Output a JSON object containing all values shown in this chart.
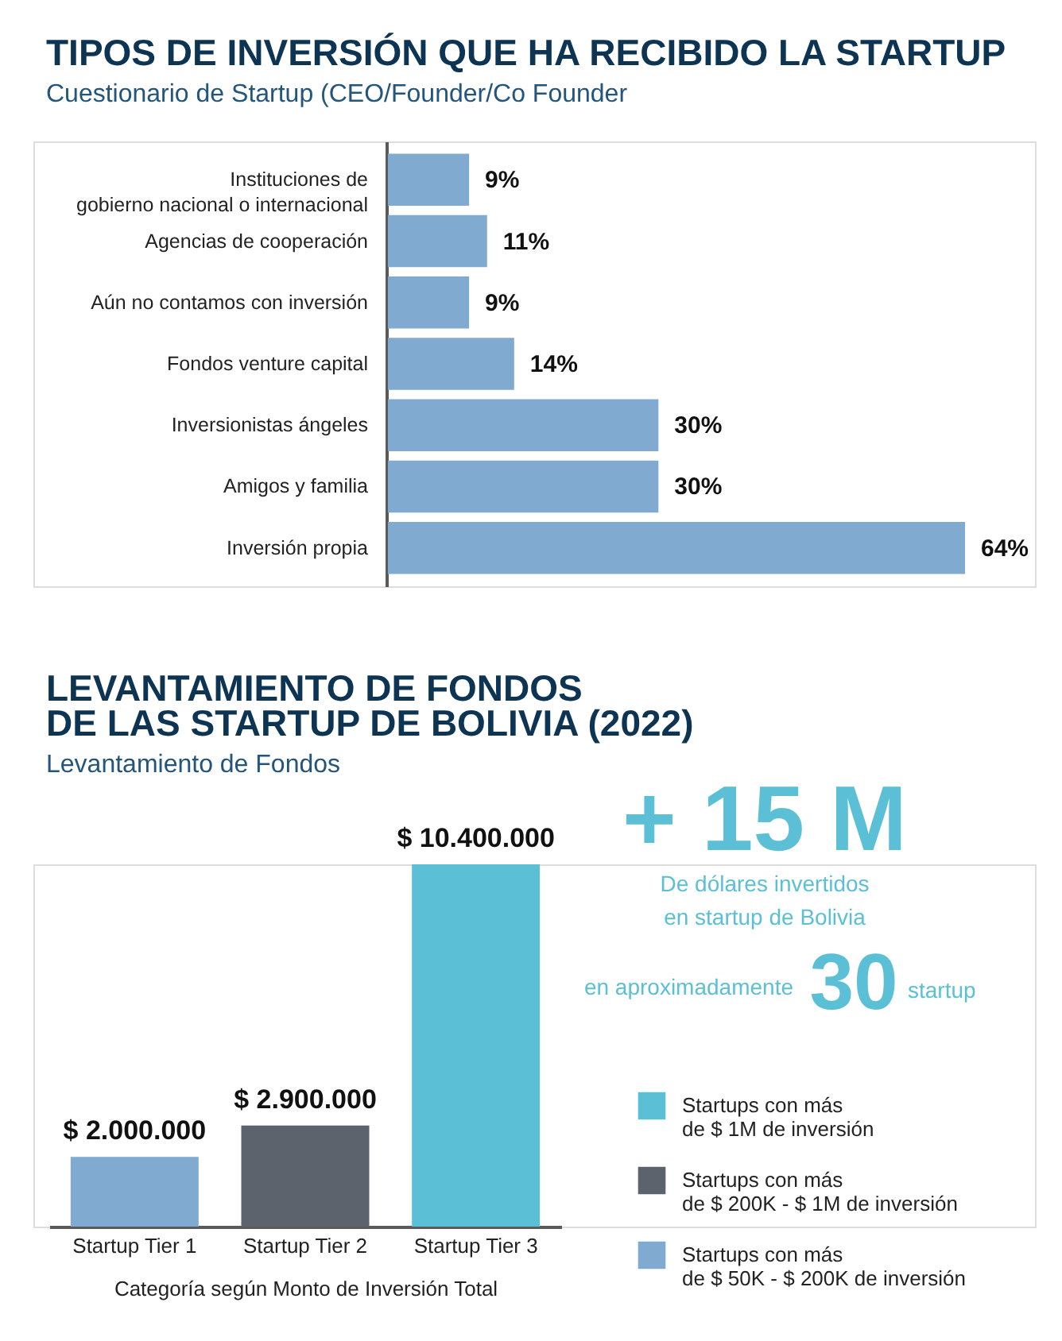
{
  "chart_data": [
    {
      "type": "bar",
      "orientation": "horizontal",
      "title": "TIPOS DE INVERSIÓN QUE HA RECIBIDO LA STARTUP",
      "subtitle": "Cuestionario de Startup (CEO/Founder/Co Founder",
      "categories": [
        "Instituciones de gobierno nacional o internacional",
        "Agencias de cooperación",
        "Aún no contamos con inversión",
        "Fondos venture capital",
        "Inversionistas ángeles",
        "Amigos y familia",
        "Inversión propia"
      ],
      "values": [
        9,
        11,
        9,
        14,
        30,
        30,
        64
      ],
      "value_labels": [
        "9%",
        "11%",
        "9%",
        "14%",
        "30%",
        "30%",
        "64%"
      ],
      "color": "#80aad0",
      "tick_labels": "y"
    },
    {
      "type": "bar",
      "title": "LEVANTAMIENTO DE FONDOS DE LAS STARTUP DE BOLIVIA (2022)",
      "subtitle": "Levantamiento de Fondos",
      "xlabel": "Categoría según Monto de Inversión Total",
      "categories": [
        "Startup Tier 1",
        "Startup Tier 2",
        "Startup Tier 3"
      ],
      "stacked": true,
      "series": [
        {
          "name": "Startups con más de $ 1M de inversión",
          "color": "#5bc0d5",
          "values": [
            null,
            null,
            10400000
          ],
          "value_labels": [
            null,
            null,
            "$ 10.400.000"
          ]
        },
        {
          "name": "Startups con más de $ 200K - $ 1M de inversión",
          "color": "#5d636c",
          "values": [
            null,
            2900000,
            null
          ],
          "value_labels": [
            null,
            "$ 2.900.000",
            null
          ]
        },
        {
          "name": "Startups con más de $ 50K - $ 200K de inversión",
          "color": "#80aad0",
          "values": [
            2000000,
            null,
            null
          ],
          "value_labels": [
            "$ 2.000.000",
            null,
            null
          ]
        }
      ],
      "legend": "right",
      "tick_labels": "x",
      "annotations": [
        "+ 15 M",
        "De dólares invertidos en startup de Bolivia",
        "en aproximadamente",
        "30",
        "startup"
      ]
    }
  ]
}
